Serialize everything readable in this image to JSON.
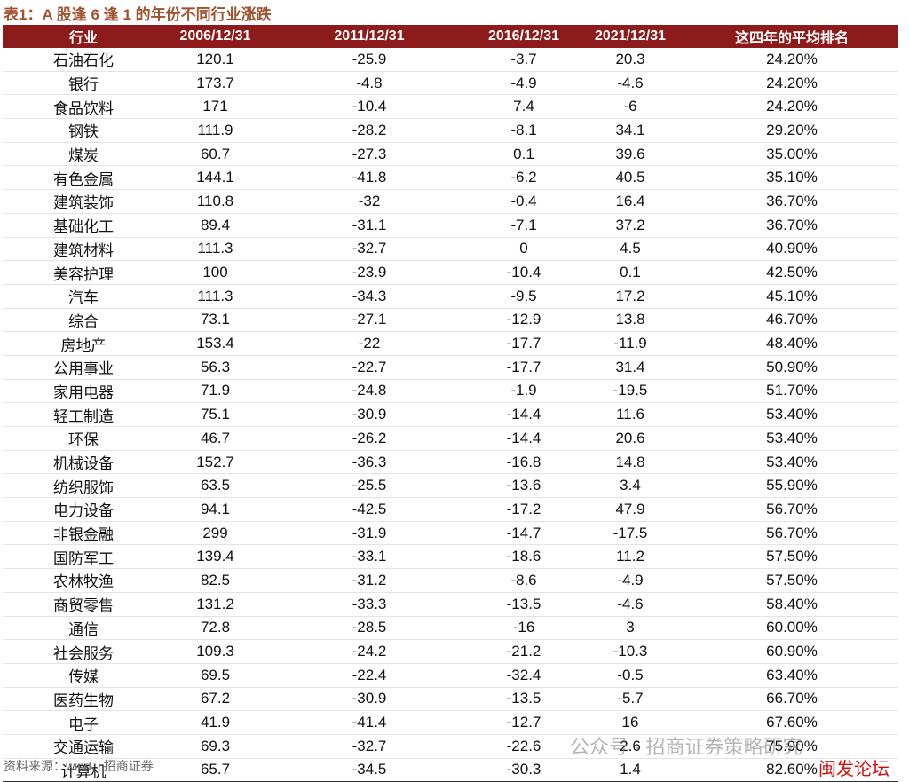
{
  "title": "表1：A 股逢 6 逢 1 的年份不同行业涨跌",
  "table": {
    "header": [
      "行业",
      "2006/12/31",
      "2011/12/31",
      "2016/12/31",
      "2021/12/31",
      "这四年的平均排名"
    ],
    "rows": [
      [
        "石油石化",
        "120.1",
        "-25.9",
        "-3.7",
        "20.3",
        "24.20%"
      ],
      [
        "银行",
        "173.7",
        "-4.8",
        "-4.9",
        "-4.6",
        "24.20%"
      ],
      [
        "食品饮料",
        "171",
        "-10.4",
        "7.4",
        "-6",
        "24.20%"
      ],
      [
        "钢铁",
        "111.9",
        "-28.2",
        "-8.1",
        "34.1",
        "29.20%"
      ],
      [
        "煤炭",
        "60.7",
        "-27.3",
        "0.1",
        "39.6",
        "35.00%"
      ],
      [
        "有色金属",
        "144.1",
        "-41.8",
        "-6.2",
        "40.5",
        "35.10%"
      ],
      [
        "建筑装饰",
        "110.8",
        "-32",
        "-0.4",
        "16.4",
        "36.70%"
      ],
      [
        "基础化工",
        "89.4",
        "-31.1",
        "-7.1",
        "37.2",
        "36.70%"
      ],
      [
        "建筑材料",
        "111.3",
        "-32.7",
        "0",
        "4.5",
        "40.90%"
      ],
      [
        "美容护理",
        "100",
        "-23.9",
        "-10.4",
        "0.1",
        "42.50%"
      ],
      [
        "汽车",
        "111.3",
        "-34.3",
        "-9.5",
        "17.2",
        "45.10%"
      ],
      [
        "综合",
        "73.1",
        "-27.1",
        "-12.9",
        "13.8",
        "46.70%"
      ],
      [
        "房地产",
        "153.4",
        "-22",
        "-17.7",
        "-11.9",
        "48.40%"
      ],
      [
        "公用事业",
        "56.3",
        "-22.7",
        "-17.7",
        "31.4",
        "50.90%"
      ],
      [
        "家用电器",
        "71.9",
        "-24.8",
        "-1.9",
        "-19.5",
        "51.70%"
      ],
      [
        "轻工制造",
        "75.1",
        "-30.9",
        "-14.4",
        "11.6",
        "53.40%"
      ],
      [
        "环保",
        "46.7",
        "-26.2",
        "-14.4",
        "20.6",
        "53.40%"
      ],
      [
        "机械设备",
        "152.7",
        "-36.3",
        "-16.8",
        "14.8",
        "53.40%"
      ],
      [
        "纺织服饰",
        "63.5",
        "-25.5",
        "-13.6",
        "3.4",
        "55.90%"
      ],
      [
        "电力设备",
        "94.1",
        "-42.5",
        "-17.2",
        "47.9",
        "56.70%"
      ],
      [
        "非银金融",
        "299",
        "-31.9",
        "-14.7",
        "-17.5",
        "56.70%"
      ],
      [
        "国防军工",
        "139.4",
        "-33.1",
        "-18.6",
        "11.2",
        "57.50%"
      ],
      [
        "农林牧渔",
        "82.5",
        "-31.2",
        "-8.6",
        "-4.9",
        "57.50%"
      ],
      [
        "商贸零售",
        "131.2",
        "-33.3",
        "-13.5",
        "-4.6",
        "58.40%"
      ],
      [
        "通信",
        "72.8",
        "-28.5",
        "-16",
        "3",
        "60.00%"
      ],
      [
        "社会服务",
        "109.3",
        "-24.2",
        "-21.2",
        "-10.3",
        "60.90%"
      ],
      [
        "传媒",
        "69.5",
        "-22.4",
        "-32.4",
        "-0.5",
        "63.40%"
      ],
      [
        "医药生物",
        "67.2",
        "-30.9",
        "-13.5",
        "-5.7",
        "66.70%"
      ],
      [
        "电子",
        "41.9",
        "-41.4",
        "-12.7",
        "16",
        "67.60%"
      ],
      [
        "交通运输",
        "69.3",
        "-32.7",
        "-22.6",
        "2.6",
        "75.90%"
      ],
      [
        "计算机",
        "65.7",
        "-34.5",
        "-30.3",
        "1.4",
        "82.60%"
      ]
    ]
  },
  "source": "资料来源：wind、招商证券",
  "watermark": "公众号 · 招商证券策略研究",
  "stamp": "闽发论坛"
}
